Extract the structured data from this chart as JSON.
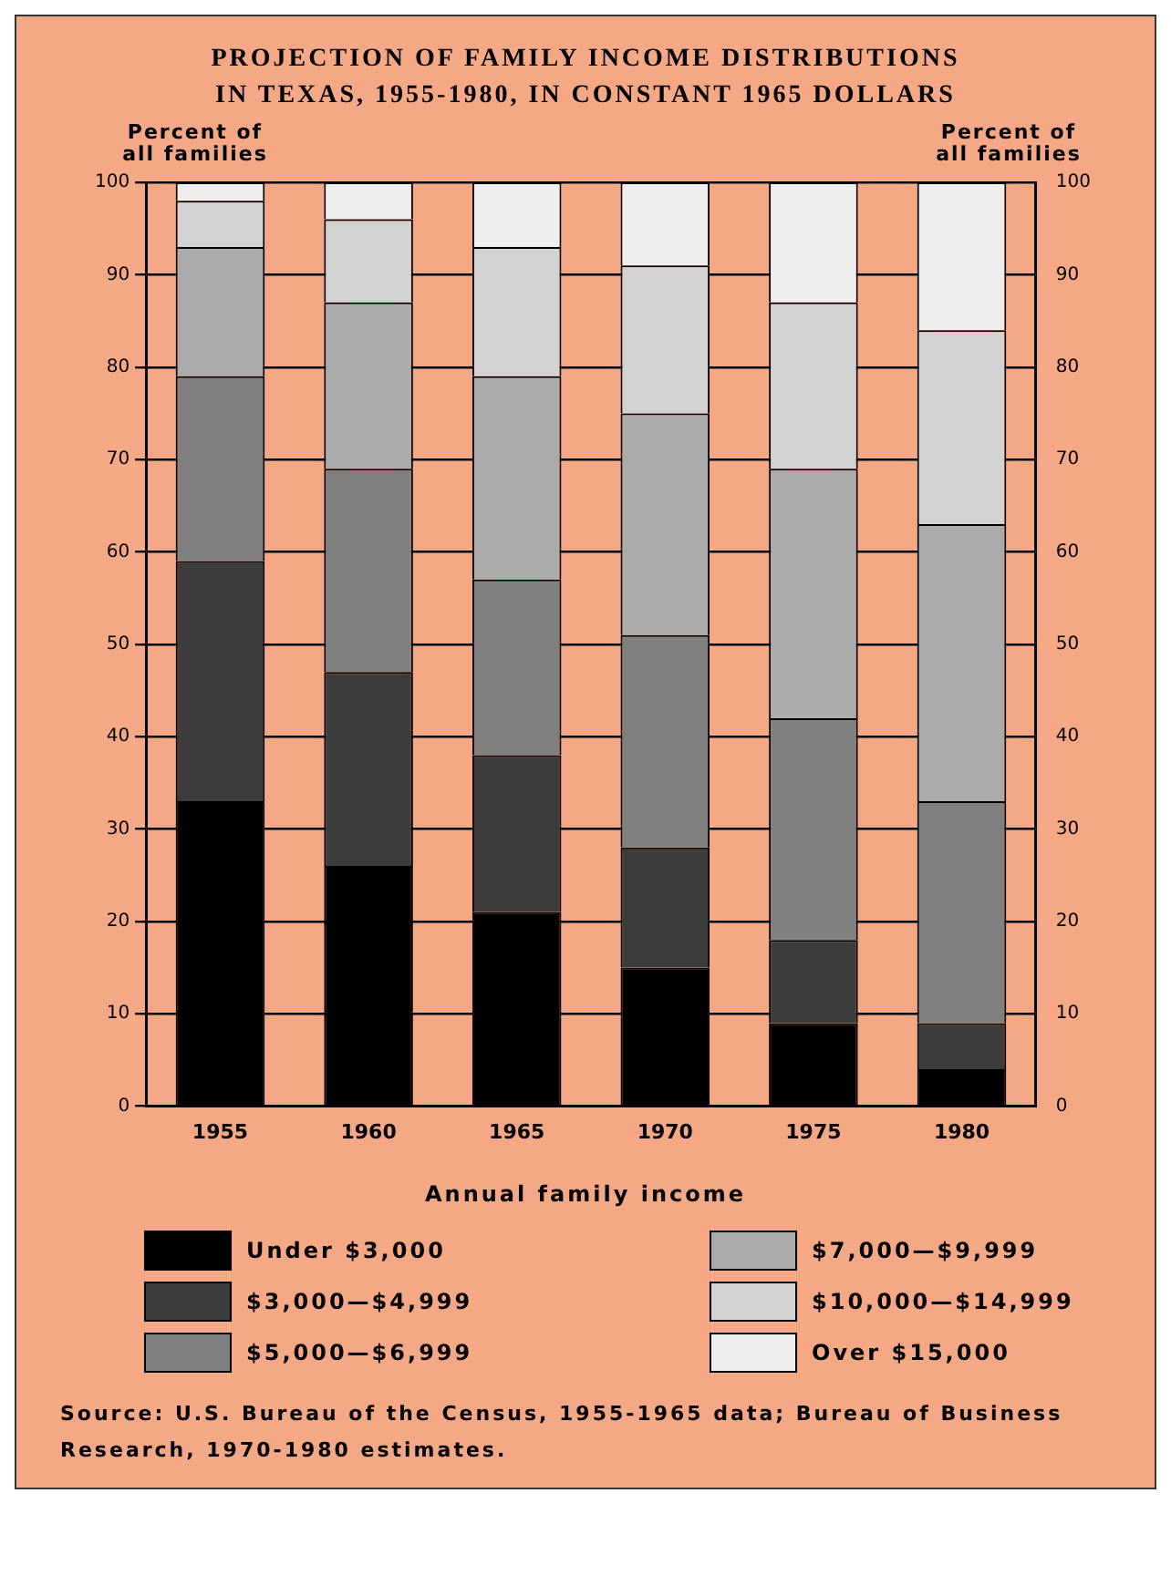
{
  "chart_data": {
    "type": "bar",
    "stacked": true,
    "title": "PROJECTION OF FAMILY INCOME DISTRIBUTIONS IN TEXAS, 1955-1980, IN CONSTANT 1965 DOLLARS",
    "ylabel": "Percent of all families",
    "y2label": "Percent of all families",
    "legend_title": "Annual family income",
    "categories": [
      "1955",
      "1960",
      "1965",
      "1970",
      "1975",
      "1980"
    ],
    "series": [
      {
        "name": "Under $3,000",
        "color": "#000000",
        "values": [
          33,
          26,
          21,
          15,
          9,
          4
        ]
      },
      {
        "name": "$3,000—$4,999",
        "color": "#3c3c3c",
        "values": [
          26,
          21,
          17,
          13,
          9,
          5
        ]
      },
      {
        "name": "$5,000—$6,999",
        "color": "#808080",
        "values": [
          20,
          22,
          19,
          23,
          24,
          24
        ]
      },
      {
        "name": "$7,000—$9,999",
        "color": "#ababab",
        "values": [
          14,
          18,
          22,
          24,
          27,
          30
        ]
      },
      {
        "name": "$10,000—$14,999",
        "color": "#d2d2d2",
        "values": [
          5,
          9,
          14,
          16,
          18,
          21
        ]
      },
      {
        "name": "Over $15,000",
        "color": "#efefef",
        "values": [
          2,
          4,
          7,
          9,
          13,
          16
        ]
      }
    ],
    "ylim": [
      0,
      100
    ],
    "yticks": [
      0,
      10,
      20,
      30,
      40,
      50,
      60,
      70,
      80,
      90,
      100
    ],
    "y2lim": [
      0,
      100
    ],
    "y2ticks": [
      0,
      10,
      20,
      30,
      40,
      50,
      60,
      70,
      80,
      90,
      100
    ],
    "grid": "y",
    "legend": "bottom",
    "annotations": [
      "Source:  U.S. Bureau of the Census, 1955-1965 data; Bureau of Business Research, 1970-1980 estimates."
    ]
  }
}
